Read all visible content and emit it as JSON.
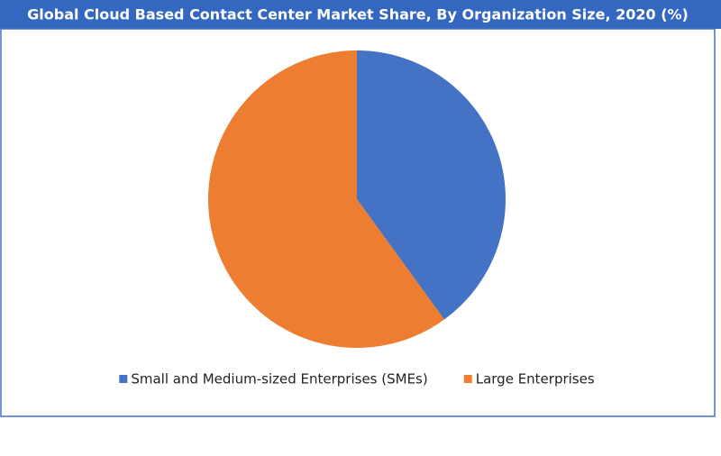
{
  "chart_data": {
    "type": "pie",
    "title": "Global Cloud Based Contact Center Market Share, By Organization Size, 2020 (%)",
    "categories": [
      "Small and Medium-sized Enterprises (SMEs)",
      "Large Enterprises"
    ],
    "values": [
      40,
      60
    ],
    "colors": [
      "#4472c4",
      "#ed7d31"
    ],
    "legend": "bottom"
  }
}
